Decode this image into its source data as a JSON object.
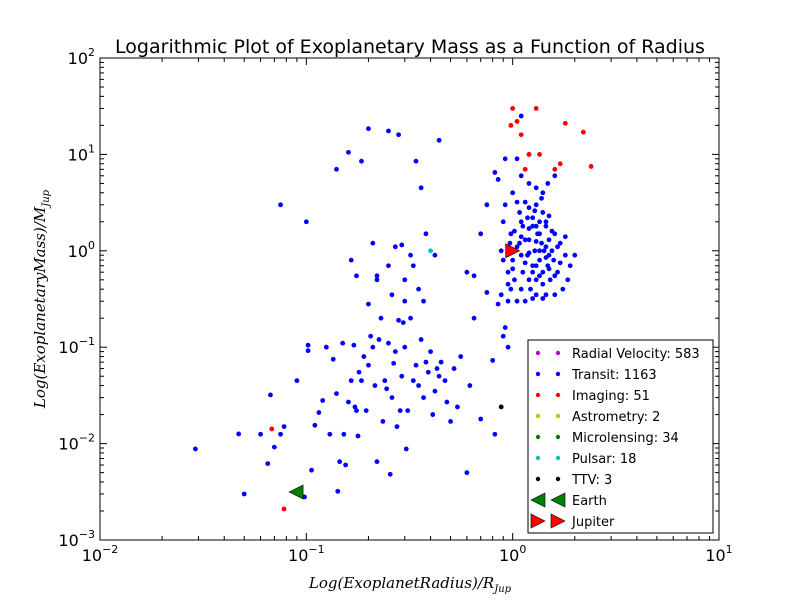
{
  "chart_data": {
    "type": "scatter",
    "title": "Logarithmic Plot of Exoplanetary Mass as a Function of Radius",
    "xlabel": "Log(ExoplanetRadius)/R_Jup",
    "ylabel": "Log(ExoplanetaryMass)/M_Jup",
    "xscale": "log",
    "yscale": "log",
    "xlim": [
      0.01,
      10
    ],
    "ylim": [
      0.001,
      100
    ],
    "x_ticks": [
      {
        "base": "10",
        "exp": "−2",
        "value": 0.01
      },
      {
        "base": "10",
        "exp": "−1",
        "value": 0.1
      },
      {
        "base": "10",
        "exp": "0",
        "value": 1
      },
      {
        "base": "10",
        "exp": "1",
        "value": 10
      }
    ],
    "y_ticks": [
      {
        "base": "10",
        "exp": "−3",
        "value": 0.001
      },
      {
        "base": "10",
        "exp": "−2",
        "value": 0.01
      },
      {
        "base": "10",
        "exp": "−1",
        "value": 0.1
      },
      {
        "base": "10",
        "exp": "0",
        "value": 1
      },
      {
        "base": "10",
        "exp": "1",
        "value": 10
      },
      {
        "base": "10",
        "exp": "2",
        "value": 100
      }
    ],
    "legend_position": "lower-right",
    "series": [
      {
        "name": "Radial Velocity: 583",
        "color": "#bf00bf",
        "points": []
      },
      {
        "name": "Transit: 1163",
        "color": "#0000ff",
        "points": [
          [
            0.029,
            0.0088
          ],
          [
            0.047,
            0.0126
          ],
          [
            0.05,
            0.003
          ],
          [
            0.06,
            0.0125
          ],
          [
            0.065,
            0.0062
          ],
          [
            0.067,
            0.032
          ],
          [
            0.07,
            0.0092
          ],
          [
            0.075,
            0.0125
          ],
          [
            0.078,
            0.015
          ],
          [
            0.09,
            0.045
          ],
          [
            0.098,
            0.0028
          ],
          [
            0.102,
            0.092
          ],
          [
            0.102,
            0.105
          ],
          [
            0.106,
            0.0053
          ],
          [
            0.11,
            0.0155
          ],
          [
            0.115,
            0.021
          ],
          [
            0.12,
            0.028
          ],
          [
            0.125,
            0.1
          ],
          [
            0.13,
            0.0125
          ],
          [
            0.135,
            0.075
          ],
          [
            0.14,
            0.033
          ],
          [
            0.142,
            0.0032
          ],
          [
            0.145,
            0.0065
          ],
          [
            0.15,
            0.11
          ],
          [
            0.152,
            0.0125
          ],
          [
            0.155,
            0.006
          ],
          [
            0.16,
            0.027
          ],
          [
            0.165,
            0.045
          ],
          [
            0.17,
            0.105
          ],
          [
            0.172,
            0.024
          ],
          [
            0.175,
            0.022
          ],
          [
            0.178,
            0.012
          ],
          [
            0.18,
            0.055
          ],
          [
            0.185,
            0.045
          ],
          [
            0.19,
            0.08
          ],
          [
            0.195,
            0.022
          ],
          [
            0.2,
            0.065
          ],
          [
            0.205,
            0.13
          ],
          [
            0.21,
            0.1
          ],
          [
            0.215,
            0.04
          ],
          [
            0.22,
            0.0065
          ],
          [
            0.225,
            0.12
          ],
          [
            0.23,
            0.2
          ],
          [
            0.235,
            0.017
          ],
          [
            0.24,
            0.045
          ],
          [
            0.245,
            0.037
          ],
          [
            0.25,
            0.11
          ],
          [
            0.255,
            0.0048
          ],
          [
            0.26,
            0.03
          ],
          [
            0.265,
            0.068
          ],
          [
            0.27,
            0.09
          ],
          [
            0.275,
            0.015
          ],
          [
            0.28,
            0.19
          ],
          [
            0.285,
            0.022
          ],
          [
            0.29,
            0.05
          ],
          [
            0.295,
            0.18
          ],
          [
            0.3,
            0.1
          ],
          [
            0.305,
            0.0088
          ],
          [
            0.31,
            0.022
          ],
          [
            0.32,
            0.2
          ],
          [
            0.33,
            0.045
          ],
          [
            0.34,
            0.065
          ],
          [
            0.35,
            0.04
          ],
          [
            0.36,
            0.12
          ],
          [
            0.37,
            0.03
          ],
          [
            0.38,
            0.07
          ],
          [
            0.39,
            0.055
          ],
          [
            0.4,
            0.09
          ],
          [
            0.41,
            0.02
          ],
          [
            0.42,
            0.035
          ],
          [
            0.43,
            0.06
          ],
          [
            0.44,
            0.05
          ],
          [
            0.45,
            0.07
          ],
          [
            0.47,
            0.045
          ],
          [
            0.48,
            0.027
          ],
          [
            0.5,
            0.017
          ],
          [
            0.52,
            0.06
          ],
          [
            0.54,
            0.024
          ],
          [
            0.56,
            0.08
          ],
          [
            0.6,
            0.005
          ],
          [
            0.62,
            0.04
          ],
          [
            0.65,
            0.2
          ],
          [
            0.7,
            0.018
          ],
          [
            0.75,
            0.37
          ],
          [
            0.8,
            0.073
          ],
          [
            0.82,
            0.0125
          ],
          [
            0.85,
            0.28
          ],
          [
            0.88,
            0.35
          ],
          [
            0.9,
            0.13
          ],
          [
            0.92,
            0.16
          ],
          [
            0.95,
            0.1
          ],
          [
            0.14,
            7
          ],
          [
            0.16,
            10.5
          ],
          [
            0.165,
            0.8
          ],
          [
            0.175,
            0.55
          ],
          [
            0.185,
            8.5
          ],
          [
            0.2,
            18.5
          ],
          [
            0.2,
            0.28
          ],
          [
            0.21,
            1.2
          ],
          [
            0.22,
            0.55
          ],
          [
            0.25,
            17.5
          ],
          [
            0.26,
            0.35
          ],
          [
            0.27,
            1.1
          ],
          [
            0.28,
            16
          ],
          [
            0.29,
            1.15
          ],
          [
            0.3,
            0.5
          ],
          [
            0.32,
            0.9
          ],
          [
            0.33,
            0.7
          ],
          [
            0.34,
            8.5
          ],
          [
            0.35,
            0.4
          ],
          [
            0.36,
            4.5
          ],
          [
            0.37,
            0.3
          ],
          [
            0.38,
            1.5
          ],
          [
            0.42,
            0.9
          ],
          [
            0.44,
            14
          ],
          [
            0.6,
            0.6
          ],
          [
            0.65,
            0.55
          ],
          [
            0.7,
            1.5
          ],
          [
            0.75,
            3
          ],
          [
            0.85,
            5.5
          ],
          [
            0.9,
            0.8
          ],
          [
            0.95,
            0.6
          ],
          [
            0.25,
            0.7
          ],
          [
            0.3,
            0.3
          ],
          [
            0.22,
            0.5
          ],
          [
            0.075,
            3
          ],
          [
            0.1,
            2
          ],
          [
            0.82,
            6.5
          ],
          [
            0.88,
            1
          ],
          [
            0.92,
            9
          ],
          [
            0.95,
            0.3
          ],
          [
            0.98,
            1.5
          ],
          [
            1.0,
            0.8
          ],
          [
            1.02,
            0.5
          ],
          [
            1.05,
            1.1
          ],
          [
            1.05,
            9
          ],
          [
            1.08,
            2.5
          ],
          [
            1.1,
            6
          ],
          [
            1.1,
            25
          ],
          [
            1.12,
            0.6
          ],
          [
            1.15,
            1.3
          ],
          [
            1.15,
            3.2
          ],
          [
            1.18,
            0.9
          ],
          [
            1.2,
            1.7
          ],
          [
            1.2,
            10
          ],
          [
            1.22,
            0.4
          ],
          [
            1.25,
            2.2
          ],
          [
            1.25,
            0.7
          ],
          [
            1.28,
            1
          ],
          [
            1.3,
            0.5
          ],
          [
            1.3,
            3
          ],
          [
            1.32,
            1.5
          ],
          [
            1.35,
            0.8
          ],
          [
            1.35,
            2
          ],
          [
            1.38,
            1.2
          ],
          [
            1.4,
            0.6
          ],
          [
            1.4,
            4
          ],
          [
            1.42,
            1
          ],
          [
            1.45,
            0.35
          ],
          [
            1.45,
            1.8
          ],
          [
            1.48,
            0.7
          ],
          [
            1.5,
            1.3
          ],
          [
            1.5,
            2.3
          ],
          [
            1.52,
            0.5
          ],
          [
            1.55,
            1
          ],
          [
            1.58,
            0.8
          ],
          [
            1.6,
            1.5
          ],
          [
            1.65,
            0.6
          ],
          [
            1.7,
            1.2
          ],
          [
            1.75,
            0.4
          ],
          [
            1.8,
            0.9
          ],
          [
            1.85,
            0.5
          ],
          [
            1.9,
            0.7
          ],
          [
            2.0,
            0.9
          ],
          [
            1.25,
            1.8
          ],
          [
            1.1,
            1.4
          ],
          [
            1.15,
            0.75
          ],
          [
            1.2,
            0.95
          ],
          [
            1.3,
            1.25
          ],
          [
            1.35,
            0.55
          ],
          [
            1.4,
            2.5
          ],
          [
            1.45,
            1.1
          ],
          [
            1.5,
            0.65
          ],
          [
            1.05,
            3.2
          ],
          [
            1.1,
            2.0
          ],
          [
            1.2,
            2.8
          ],
          [
            1.3,
            0.35
          ],
          [
            1.4,
            0.45
          ],
          [
            1.1,
            0.9
          ],
          [
            1.2,
            1.3
          ],
          [
            1.25,
            0.6
          ],
          [
            1.3,
            1.8
          ],
          [
            1.35,
            1.0
          ],
          [
            1.45,
            0.85
          ],
          [
            1.55,
            1.6
          ],
          [
            1.6,
            0.55
          ],
          [
            1.7,
            0.75
          ],
          [
            1.0,
            0.65
          ],
          [
            0.98,
            0.4
          ],
          [
            0.95,
            0.45
          ],
          [
            1.05,
            0.3
          ],
          [
            1.15,
            0.3
          ],
          [
            1.25,
            0.32
          ],
          [
            1.4,
            0.32
          ],
          [
            1.6,
            0.35
          ],
          [
            1.1,
            0.4
          ],
          [
            1.3,
            0.7
          ],
          [
            1.5,
            0.9
          ],
          [
            1.65,
            1.1
          ],
          [
            1.8,
            1.4
          ],
          [
            1.45,
            2.0
          ],
          [
            1.35,
            1.5
          ],
          [
            1.2,
            0.5
          ],
          [
            1.12,
            1.8
          ],
          [
            1.08,
            1.2
          ],
          [
            1.02,
            1.6
          ],
          [
            1.18,
            2.2
          ],
          [
            1.28,
            2.6
          ],
          [
            1.38,
            3.5
          ],
          [
            1.48,
            5
          ],
          [
            1.6,
            6
          ],
          [
            1.3,
            4.5
          ],
          [
            1.2,
            5
          ],
          [
            1.0,
            4
          ],
          [
            0.9,
            2
          ],
          [
            0.92,
            3
          ],
          [
            0.97,
            1.2
          ],
          [
            1.0,
            1.0
          ]
        ]
      },
      {
        "name": "Imaging: 51",
        "color": "#ff0000",
        "points": [
          [
            0.068,
            0.0142
          ],
          [
            0.078,
            0.0021
          ],
          [
            0.98,
            20
          ],
          [
            1.0,
            30
          ],
          [
            1.05,
            22
          ],
          [
            1.1,
            16
          ],
          [
            1.15,
            7
          ],
          [
            1.2,
            10
          ],
          [
            1.3,
            30
          ],
          [
            1.35,
            10
          ],
          [
            1.6,
            7
          ],
          [
            1.7,
            8
          ],
          [
            1.8,
            21
          ],
          [
            2.2,
            17
          ],
          [
            2.4,
            7.5
          ]
        ]
      },
      {
        "name": "Astrometry: 2",
        "color": "#bfbf00",
        "points": []
      },
      {
        "name": "Microlensing: 34",
        "color": "#008000",
        "points": []
      },
      {
        "name": "Pulsar: 18",
        "color": "#00bfbf",
        "points": [
          [
            0.4,
            1.0
          ]
        ]
      },
      {
        "name": "TTV: 3",
        "color": "#000000",
        "points": [
          [
            0.88,
            0.024
          ]
        ]
      }
    ],
    "markers": [
      {
        "name": "Earth",
        "color": "#008000",
        "shape": "triangle-left",
        "x": 0.0892,
        "y": 0.00315
      },
      {
        "name": "Jupiter",
        "color": "#ff0000",
        "shape": "triangle-right",
        "x": 1,
        "y": 1
      }
    ]
  }
}
